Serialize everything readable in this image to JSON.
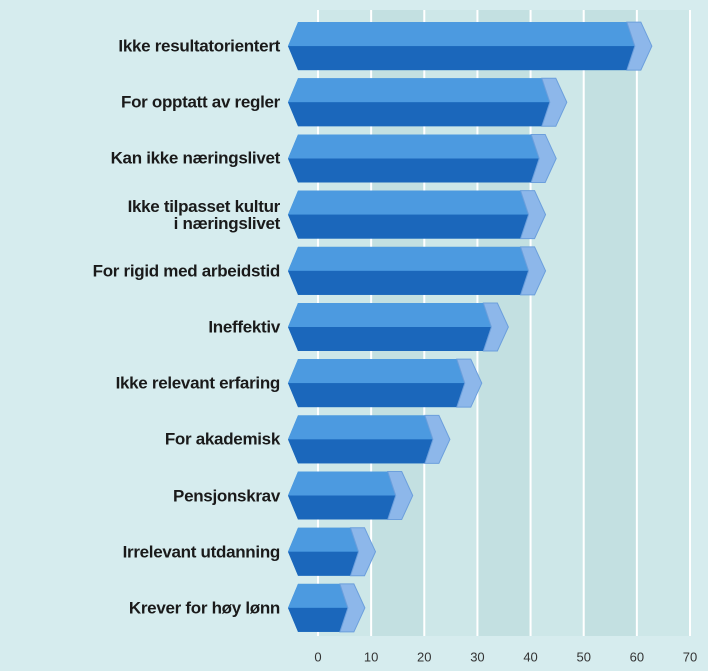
{
  "chart_data": {
    "type": "bar",
    "orientation": "horizontal",
    "categories": [
      "Ikke resultatorientert",
      "For opptatt av regler",
      "Kan ikke næringslivet",
      "Ikke tilpasset kultur\ni næringslivet",
      "For rigid med arbeidstid",
      "Ineffektiv",
      "Ikke relevant erfaring",
      "For akademisk",
      "Pensjonskrav",
      "Irrelevant utdanning",
      "Krever for høy lønn"
    ],
    "values": [
      60,
      44,
      42,
      40,
      40,
      33,
      28,
      22,
      15,
      8,
      6
    ],
    "color": "#2a7fd0",
    "xlim": [
      0,
      70
    ],
    "xticks": [
      0,
      10,
      20,
      30,
      40,
      50,
      60,
      70
    ],
    "grid": true
  }
}
